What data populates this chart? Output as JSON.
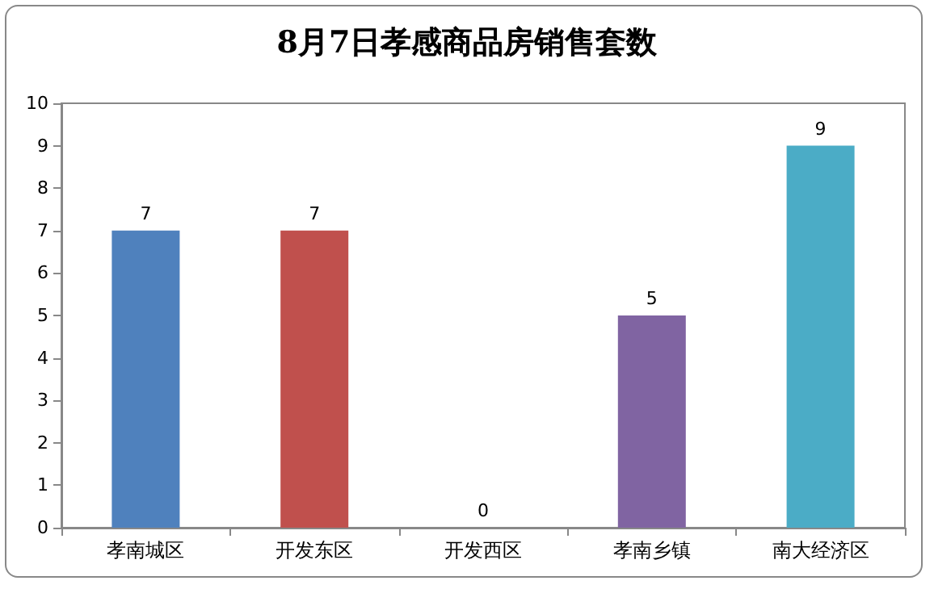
{
  "chart_data": {
    "type": "bar",
    "title": "8月7日孝感商品房销售套数",
    "categories": [
      "孝南城区",
      "开发东区",
      "开发西区",
      "孝南乡镇",
      "南大经济区"
    ],
    "values": [
      7,
      7,
      0,
      5,
      9
    ],
    "colors": [
      "#4f81bd",
      "#c0504d",
      "#9bbb59",
      "#8064a2",
      "#4bacc6"
    ],
    "ylim": [
      0,
      10
    ],
    "yticks": [
      0,
      1,
      2,
      3,
      4,
      5,
      6,
      7,
      8,
      9,
      10
    ],
    "grid": false,
    "data_labels": true
  }
}
